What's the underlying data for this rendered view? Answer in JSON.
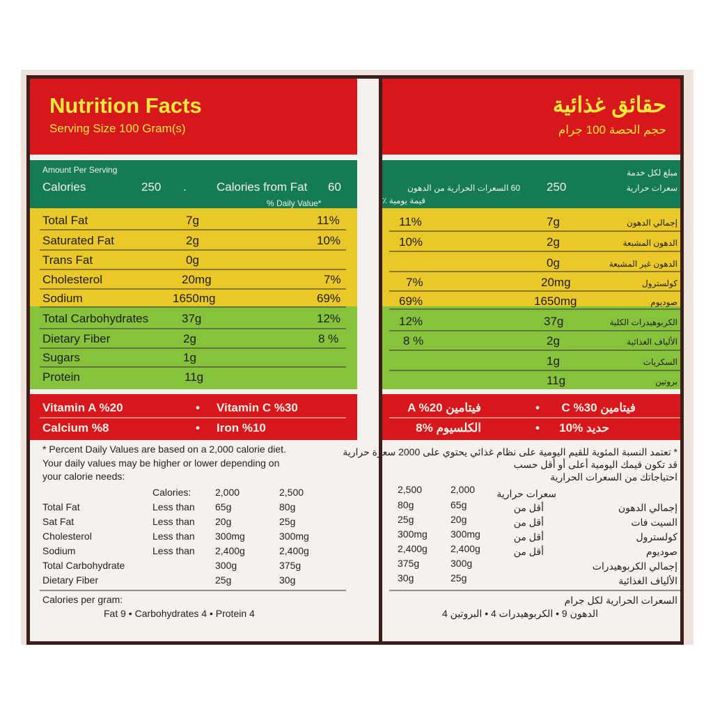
{
  "en": {
    "title": "Nutrition Facts",
    "serving": "Serving Size 100 Gram(s)",
    "amount_per_serving": "Amount Per Serving",
    "calories_label": "Calories",
    "calories_value": "250",
    "dot": ".",
    "cal_from_fat_label": "Calories from Fat",
    "cal_from_fat_value": "60",
    "daily_value_header": "% Daily Value*",
    "nutrients": [
      {
        "name": "Total Fat",
        "amount": "7g",
        "dv": "11%"
      },
      {
        "name": "Saturated Fat",
        "amount": "2g",
        "dv": "10%"
      },
      {
        "name": "Trans Fat",
        "amount": "0g",
        "dv": ""
      },
      {
        "name": "Cholesterol",
        "amount": "20mg",
        "dv": "7%"
      },
      {
        "name": "Sodium",
        "amount": "1650mg",
        "dv": "69%"
      },
      {
        "name": "Total Carbohydrates",
        "amount": "37g",
        "dv": "12%"
      },
      {
        "name": "Dietary Fiber",
        "amount": "2g",
        "dv": "8 %"
      },
      {
        "name": "Sugars",
        "amount": "1g",
        "dv": ""
      },
      {
        "name": "Protein",
        "amount": "11g",
        "dv": ""
      }
    ],
    "vitamins": {
      "vit_a": "Vitamin A  %20",
      "vit_c": "Vitamin C  %30",
      "calcium": "Calcium  %8",
      "iron": "Iron %10",
      "bullet": "•"
    },
    "footnote_lines": [
      "* Percent Daily Values are based on a 2,000 calorie diet.",
      "Your daily values may be higher or lower depending on",
      "your calorie needs:"
    ],
    "dv_table": {
      "header": [
        "Calories:",
        "2,000",
        "2,500"
      ],
      "rows": [
        [
          "Total Fat",
          "Less than",
          "65g",
          "80g"
        ],
        [
          "Sat Fat",
          "Less than",
          "20g",
          "25g"
        ],
        [
          "Cholesterol",
          "Less than",
          "300mg",
          "300mg"
        ],
        [
          "Sodium",
          "Less than",
          "2,400g",
          "2,400g"
        ],
        [
          "Total Carbohydrate",
          "",
          "300g",
          "375g"
        ],
        [
          "Dietary Fiber",
          "",
          "25g",
          "30g"
        ]
      ]
    },
    "cal_per_gram_label": "Calories per gram:",
    "cal_per_gram": "Fat 9 • Carbohydrates 4 • Protein 4"
  },
  "ar": {
    "title": "حقائق غذائية",
    "serving": "حجم الحصة 100 جرام",
    "amount_per_serving": "مبلغ لكل خدمة",
    "calories_label": "سعرات حرارية",
    "calories_value": "250",
    "cal_from_fat": "60 السعرات الحرارية من الدهون",
    "daily_value_header": "قيمة يومية ٪",
    "nutrients": [
      {
        "name": "إجمالي الدهون",
        "amount": "7g",
        "dv": "11%"
      },
      {
        "name": "الدهون المشبعة",
        "amount": "2g",
        "dv": "10%"
      },
      {
        "name": "الدهون غير المشبعة",
        "amount": "0g",
        "dv": ""
      },
      {
        "name": "كولسترول",
        "amount": "20mg",
        "dv": "7%"
      },
      {
        "name": "صوديوم",
        "amount": "1650mg",
        "dv": "69%"
      },
      {
        "name": "الكربوهيدرات الكلية",
        "amount": "37g",
        "dv": "12%"
      },
      {
        "name": "الألياف الغذائية",
        "amount": "2g",
        "dv": "8 %"
      },
      {
        "name": "السكريات",
        "amount": "1g",
        "dv": ""
      },
      {
        "name": "بروتين",
        "amount": "11g",
        "dv": ""
      }
    ],
    "vitamins": {
      "vit_a": "فيتامين A  %20",
      "vit_c": "فيتامين C  %30",
      "calcium": "الكلسيوم  %8",
      "iron": "حديد  %10",
      "bullet": "•"
    },
    "footnote_lines": [
      "* تعتمد النسبة المئوية للقيم اليومية على نظام غذائي يحتوي على 2000 سعرة حرارية",
      "قد تكون قيمك اليومية أعلى أو أقل حسب",
      "احتياجاتك من السعرات الحرارية"
    ],
    "dv_table": {
      "header": [
        "2,500",
        "2,000",
        "سعرات حرارية"
      ],
      "rows": [
        [
          "80g",
          "65g",
          "أقل من",
          "إجمالي الدهون"
        ],
        [
          "25g",
          "20g",
          "أقل من",
          "السيت فات"
        ],
        [
          "300mg",
          "300mg",
          "أقل من",
          "كولسترول"
        ],
        [
          "2,400g",
          "2,400g",
          "أقل من",
          "صوديوم"
        ],
        [
          "375g",
          "300g",
          "",
          "إجمالي الكربوهيدرات"
        ],
        [
          "30g",
          "25g",
          "",
          "الألياف الغذائية"
        ]
      ]
    },
    "cal_per_gram_label": "السعرات الحرارية لكل جرام",
    "cal_per_gram": "الدهون 9 • الكربوهيدرات 4 • البروتين 4"
  }
}
